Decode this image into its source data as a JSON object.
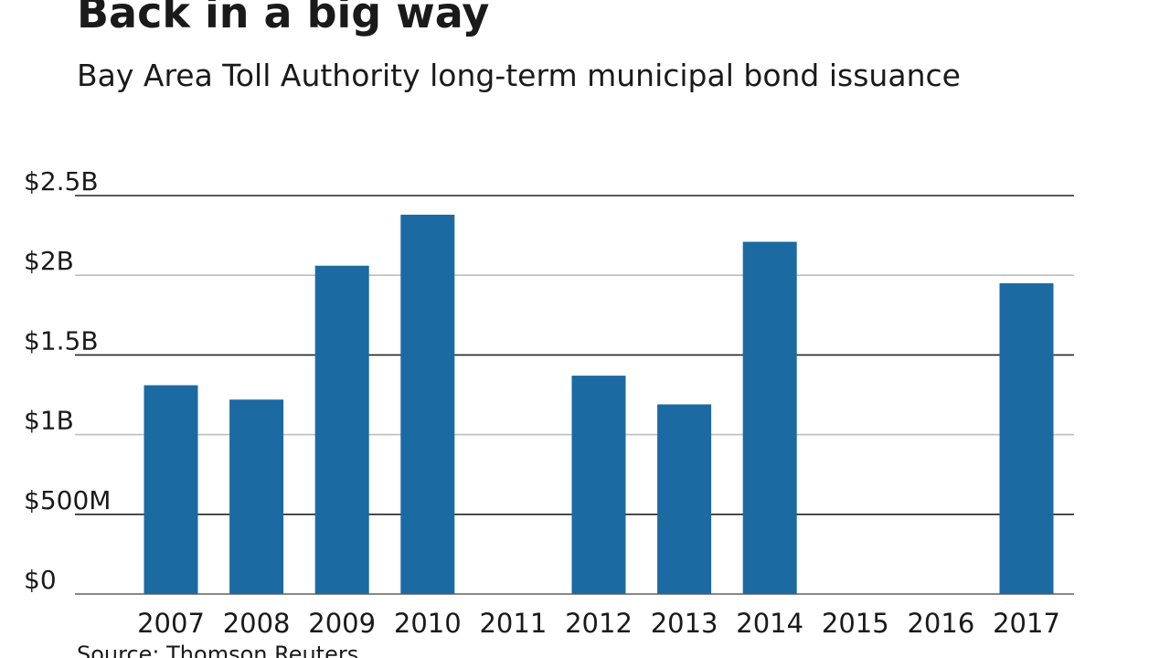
{
  "chart_data": {
    "type": "bar",
    "title": "Back in a big way",
    "subtitle": "Bay Area Toll Authority long-term municipal bond issuance",
    "source": "Source: Thomson Reuters",
    "xlabel": "",
    "ylabel": "",
    "categories": [
      "2007",
      "2008",
      "2009",
      "2010",
      "2011",
      "2012",
      "2013",
      "2014",
      "2015",
      "2016",
      "2017"
    ],
    "values": [
      1.31,
      1.22,
      2.06,
      2.38,
      0,
      1.37,
      1.19,
      2.21,
      0,
      0,
      1.95
    ],
    "value_unit": "billions of dollars",
    "ylim": [
      0,
      2.5
    ],
    "yticks": [
      {
        "value": 0,
        "label": "$0"
      },
      {
        "value": 0.5,
        "label": "$500M"
      },
      {
        "value": 1,
        "label": "$1B"
      },
      {
        "value": 1.5,
        "label": "$1.5B"
      },
      {
        "value": 2,
        "label": "$2B"
      },
      {
        "value": 2.5,
        "label": "$2.5B"
      }
    ],
    "grid": true,
    "legend": "none",
    "colors": {
      "bar": "#1c6aa2",
      "gridline_dark": "#222222",
      "gridline_light": "#bdbdbd",
      "axis": "#888888"
    }
  }
}
